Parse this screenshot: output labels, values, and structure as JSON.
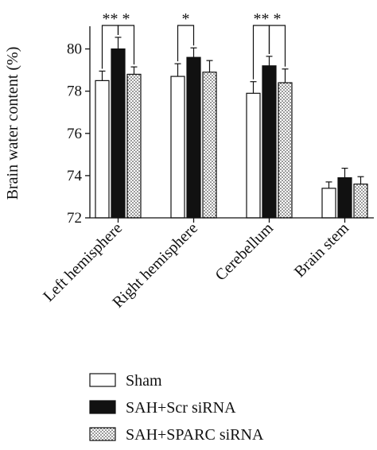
{
  "chart_data": {
    "type": "bar",
    "ylabel": "Brain water content (%)",
    "ylim": [
      72,
      81
    ],
    "yticks": [
      72,
      74,
      76,
      78,
      80
    ],
    "categories": [
      "Left hemisphere",
      "Right hemisphere",
      "Cerebellum",
      "Brain stem"
    ],
    "series": [
      {
        "name": "Sham",
        "fill": "white",
        "values": [
          78.5,
          78.7,
          77.9,
          73.4
        ],
        "errors": [
          0.45,
          0.6,
          0.55,
          0.3
        ]
      },
      {
        "name": "SAH+Scr siRNA",
        "fill": "black",
        "values": [
          80.0,
          79.6,
          79.2,
          73.9
        ],
        "errors": [
          0.55,
          0.45,
          0.45,
          0.45
        ]
      },
      {
        "name": "SAH+SPARC siRNA",
        "fill": "dots",
        "values": [
          78.8,
          78.9,
          78.4,
          73.6
        ],
        "errors": [
          0.35,
          0.55,
          0.65,
          0.35
        ]
      }
    ],
    "significance": [
      {
        "category": 0,
        "from": 0,
        "to": 1,
        "label": "**"
      },
      {
        "category": 0,
        "from": 1,
        "to": 2,
        "label": "*"
      },
      {
        "category": 1,
        "from": 0,
        "to": 1,
        "label": "*"
      },
      {
        "category": 2,
        "from": 0,
        "to": 1,
        "label": "**"
      },
      {
        "category": 2,
        "from": 1,
        "to": 2,
        "label": "*"
      }
    ],
    "legend_position": "bottom"
  },
  "colors": {
    "ink": "#111111",
    "background": "#ffffff"
  }
}
